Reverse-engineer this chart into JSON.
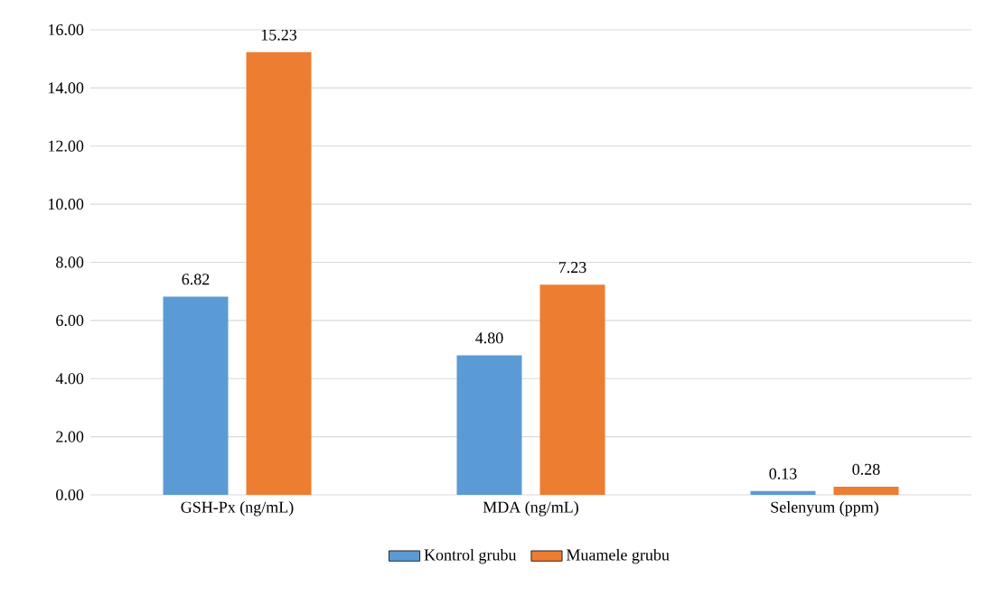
{
  "chart_data": {
    "type": "bar",
    "categories": [
      "GSH-Px (ng/mL)",
      "MDA (ng/mL)",
      "Selenyum (ppm)"
    ],
    "series": [
      {
        "name": "Kontrol grubu",
        "color": "#5b9bd5",
        "values": [
          6.82,
          4.8,
          0.13
        ],
        "value_labels": [
          "6.82",
          "4.80",
          "0.13"
        ]
      },
      {
        "name": "Muamele grubu",
        "color": "#ed7d31",
        "values": [
          15.23,
          7.23,
          0.28
        ],
        "value_labels": [
          "15.23",
          "7.23",
          "0.28"
        ]
      }
    ],
    "ylim": [
      0,
      16
    ],
    "yticks": [
      {
        "value": 0,
        "label": "0.00"
      },
      {
        "value": 2,
        "label": "2.00"
      },
      {
        "value": 4,
        "label": "4.00"
      },
      {
        "value": 6,
        "label": "6.00"
      },
      {
        "value": 8,
        "label": "8.00"
      },
      {
        "value": 10,
        "label": "10.00"
      },
      {
        "value": 12,
        "label": "12.00"
      },
      {
        "value": 14,
        "label": "14.00"
      },
      {
        "value": 16,
        "label": "16.00"
      }
    ],
    "grid": "y",
    "legend": "bottom"
  }
}
